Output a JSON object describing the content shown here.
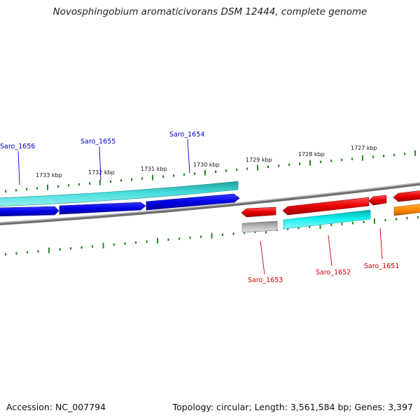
{
  "title": "Novosphingobium aromaticivorans DSM 12444, complete genome",
  "footer": {
    "accession": "Accession: NC_007794",
    "topology": "Topology: circular; Length: 3,561,584 bp; Genes: 3,397"
  },
  "ticks": [
    "1733 kbp",
    "1732 kbp",
    "1731 kbp",
    "1730 kbp",
    "1729 kbp",
    "1728 kbp",
    "1727 kbp"
  ],
  "gene_labels": {
    "top": [
      "Saro_1656",
      "Saro_1655",
      "Saro_1654"
    ],
    "bottom": [
      "Saro_1653",
      "Saro_1652",
      "Saro_1651"
    ]
  },
  "colors": {
    "cds_forward": "#0000e6",
    "rna_forward": "#33cccc",
    "cds_reverse": "#e60000",
    "rna_reverse": "#00e6e6",
    "grey_feature": "#b0b0b0",
    "orange_feature": "#ff8c00",
    "backbone": "#808080",
    "tick": "#2a8a2a",
    "label_top": "#0000cc",
    "label_bottom": "#cc0000"
  }
}
